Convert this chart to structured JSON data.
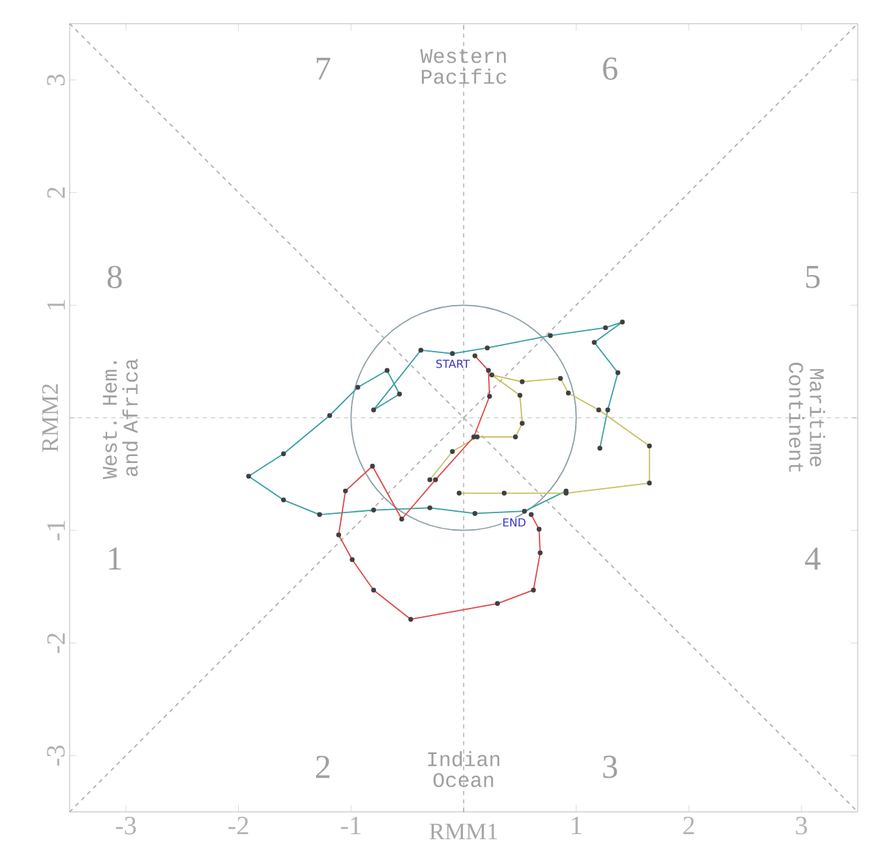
{
  "chart_data": {
    "type": "line",
    "xlabel": "RMM1",
    "ylabel": "RMM2",
    "xlim": [
      -3.5,
      3.5
    ],
    "ylim": [
      -3.5,
      3.5
    ],
    "xticks": [
      -3,
      -2,
      -1,
      {
        "value": 0,
        "label": null
      },
      1,
      2,
      3
    ],
    "yticks": [
      -3,
      -2,
      -1,
      {
        "value": 0,
        "label": null
      },
      1,
      2,
      3
    ],
    "marker": "circle",
    "grid": false,
    "series": [
      {
        "type": "line",
        "marker": "none",
        "line_style": "dashed",
        "color": "#b0b0b0",
        "x": [
          -3.5,
          3.5
        ],
        "values": [
          -3.5,
          3.5
        ]
      },
      {
        "type": "line",
        "marker": "none",
        "line_style": "dashed",
        "color": "#b0b0b0",
        "x": [
          -3.5,
          3.5
        ],
        "values": [
          3.5,
          -3.5
        ]
      },
      {
        "color": "#3a9fa0",
        "x": [
          0.91,
          0.54,
          0.1,
          -0.3,
          -0.8,
          -1.28,
          -1.6,
          -1.91,
          -1.6,
          -1.19,
          -0.94,
          -0.68,
          -0.57,
          -0.8,
          -0.38,
          -0.1,
          0.21,
          0.77,
          1.26,
          1.41,
          1.16,
          1.37,
          1.28,
          1.21
        ],
        "values": [
          -0.65,
          -0.83,
          -0.85,
          -0.8,
          -0.82,
          -0.86,
          -0.73,
          -0.52,
          -0.32,
          0.02,
          0.27,
          0.42,
          0.21,
          0.07,
          0.6,
          0.57,
          0.62,
          0.73,
          0.8,
          0.85,
          0.67,
          0.4,
          0.07,
          -0.27
        ]
      },
      {
        "color": "#c8c060",
        "x": [
          -0.3,
          -0.1,
          0.12,
          0.46,
          0.52,
          0.5,
          0.25,
          0.52,
          0.86,
          0.93,
          1.2,
          1.65,
          1.65,
          0.91,
          0.36,
          -0.04
        ],
        "values": [
          -0.55,
          -0.3,
          -0.17,
          -0.17,
          -0.05,
          0.2,
          0.38,
          0.32,
          0.35,
          0.22,
          0.07,
          -0.25,
          -0.58,
          -0.67,
          -0.67,
          -0.67
        ]
      },
      {
        "color": "#e04848",
        "x": [
          0.1,
          0.22,
          0.23,
          0.09,
          -0.25,
          -0.55,
          -0.81,
          -1.05,
          -1.11,
          -0.99,
          -0.8,
          -0.47,
          0.3,
          0.62,
          0.68,
          0.67,
          0.6
        ],
        "values": [
          0.55,
          0.42,
          0.19,
          -0.17,
          -0.55,
          -0.9,
          -0.43,
          -0.65,
          -1.04,
          -1.26,
          -1.53,
          -1.79,
          -1.65,
          -1.53,
          -1.2,
          -0.99,
          -0.86
        ]
      }
    ],
    "ref_lines": [
      {
        "axis": "x",
        "value": 0,
        "color": "#707070",
        "line_style": "dashed"
      },
      {
        "axis": "y",
        "value": 0,
        "color": "#a8a8a8",
        "line_style": "dashed"
      }
    ],
    "annotations": [
      "1",
      "2",
      "3",
      "4",
      "5",
      "6",
      "7",
      "8",
      "Western Pacific",
      "Indian Ocean",
      "West. Hem. and Africa",
      "Maritime Continent",
      {
        "text": "START",
        "x": 0.1,
        "y": 0.55
      },
      {
        "text": "END",
        "x": 0.6,
        "y": -0.86
      }
    ]
  }
}
